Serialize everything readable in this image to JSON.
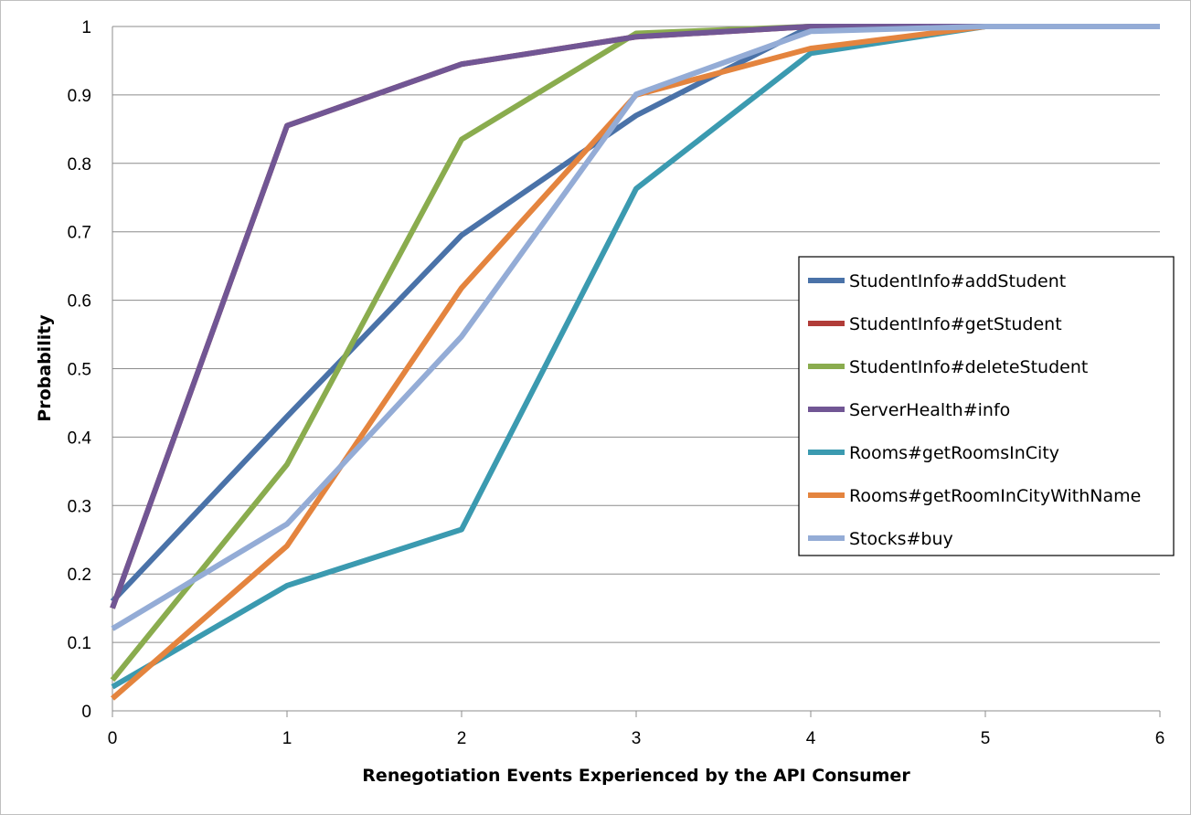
{
  "chart_data": {
    "type": "line",
    "title": "",
    "xlabel": "Renegotiation Events Experienced by the API Consumer",
    "ylabel": "Probability",
    "x": [
      0,
      1,
      2,
      3,
      4,
      5,
      6
    ],
    "x_ticks": [
      "0",
      "1",
      "2",
      "3",
      "4",
      "5",
      "6"
    ],
    "y_ticks": [
      "0",
      "0.1",
      "0.2",
      "0.3",
      "0.4",
      "0.5",
      "0.6",
      "0.7",
      "0.8",
      "0.9",
      "1"
    ],
    "xlim": [
      0,
      6
    ],
    "ylim": [
      0,
      1
    ],
    "grid": "horizontal",
    "legend_position": "right",
    "series": [
      {
        "name": "StudentInfo#addStudent",
        "color": "#4a72a8",
        "values": [
          0.16,
          0.43,
          0.695,
          0.87,
          1.0,
          1.0,
          1.0
        ]
      },
      {
        "name": "StudentInfo#getStudent",
        "color": "#b13c38",
        "values": [
          0.15,
          0.855,
          0.945,
          0.985,
          1.0,
          1.0,
          1.0
        ]
      },
      {
        "name": "StudentInfo#deleteStudent",
        "color": "#8aac4e",
        "values": [
          0.045,
          0.36,
          0.835,
          0.99,
          1.0,
          1.0,
          1.0
        ]
      },
      {
        "name": "ServerHealth#info",
        "color": "#715694",
        "values": [
          0.15,
          0.855,
          0.945,
          0.985,
          1.0,
          1.0,
          1.0
        ]
      },
      {
        "name": "Rooms#getRoomsInCity",
        "color": "#3b9ab0",
        "values": [
          0.035,
          0.183,
          0.265,
          0.763,
          0.961,
          1.0,
          1.0
        ]
      },
      {
        "name": "Rooms#getRoomInCityWithName",
        "color": "#e4843e",
        "values": [
          0.018,
          0.241,
          0.618,
          0.9,
          0.968,
          1.0,
          1.0
        ]
      },
      {
        "name": "Stocks#buy",
        "color": "#94acd6",
        "values": [
          0.12,
          0.273,
          0.547,
          0.901,
          0.993,
          1.0,
          1.0
        ]
      }
    ]
  }
}
